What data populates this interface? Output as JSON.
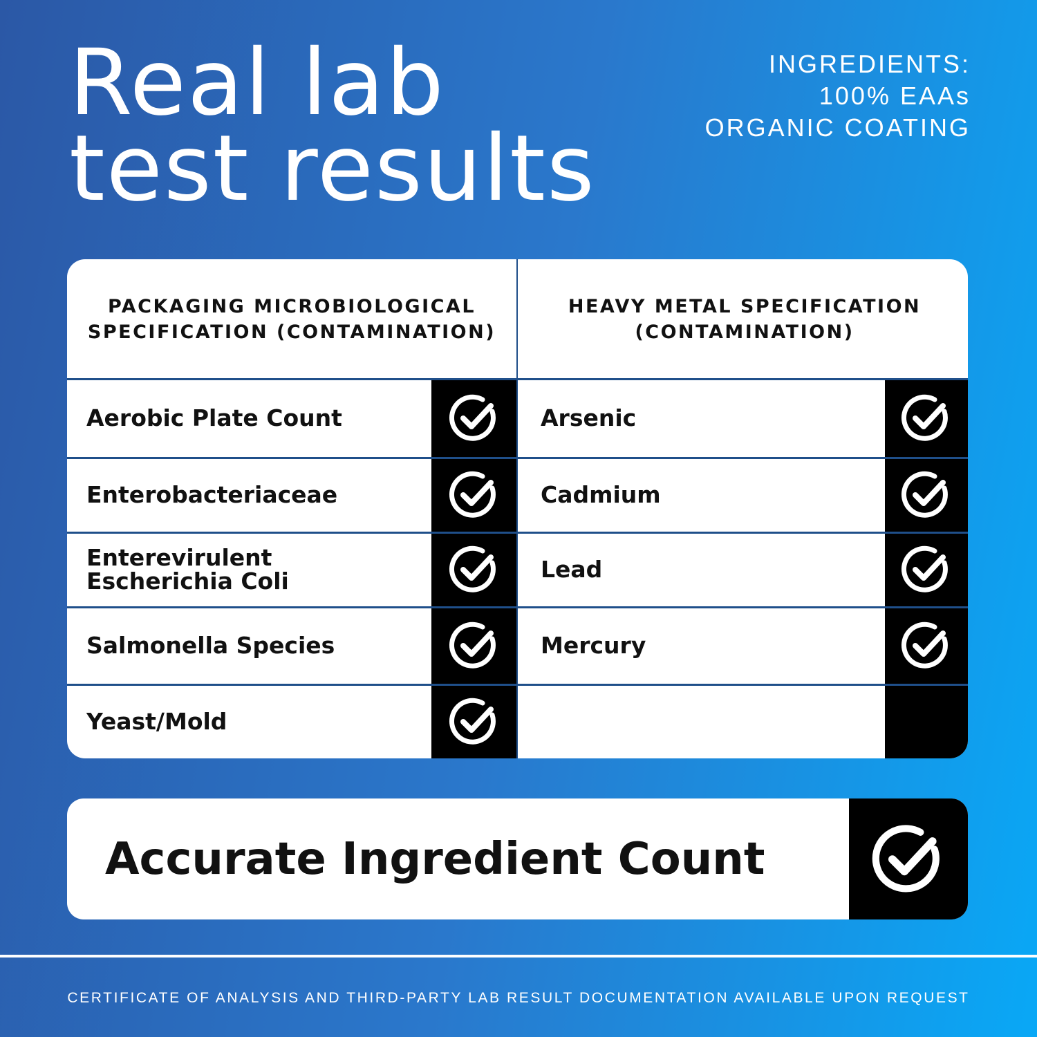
{
  "title_line1": "Real lab",
  "title_line2": "test results",
  "ingredients": {
    "line1": "INGREDIENTS:",
    "line2": "100% EAAs",
    "line3": "ORGANIC COATING"
  },
  "table": {
    "left_header": "PACKAGING MICROBIOLOGICAL SPECIFICATION (CONTAMINATION)",
    "right_header": "HEAVY METAL SPECIFICATION (CONTAMINATION)",
    "left_items": [
      "Aerobic Plate Count",
      "Enterobacteriaceae",
      "Enterevirulent Escherichia Coli",
      "Salmonella Species",
      "Yeast/Mold"
    ],
    "right_items": [
      "Arsenic",
      "Cadmium",
      "Lead",
      "Mercury"
    ],
    "check_icon": "check-circle-icon"
  },
  "bottom_label": "Accurate Ingredient Count",
  "footer": "CERTIFICATE OF ANALYSIS AND THIRD-PARTY LAB RESULT DOCUMENTATION AVAILABLE UPON REQUEST",
  "colors": {
    "gradient_left": "#2b58a6",
    "gradient_right": "#09a8f6",
    "divider": "#1f4f8a"
  }
}
